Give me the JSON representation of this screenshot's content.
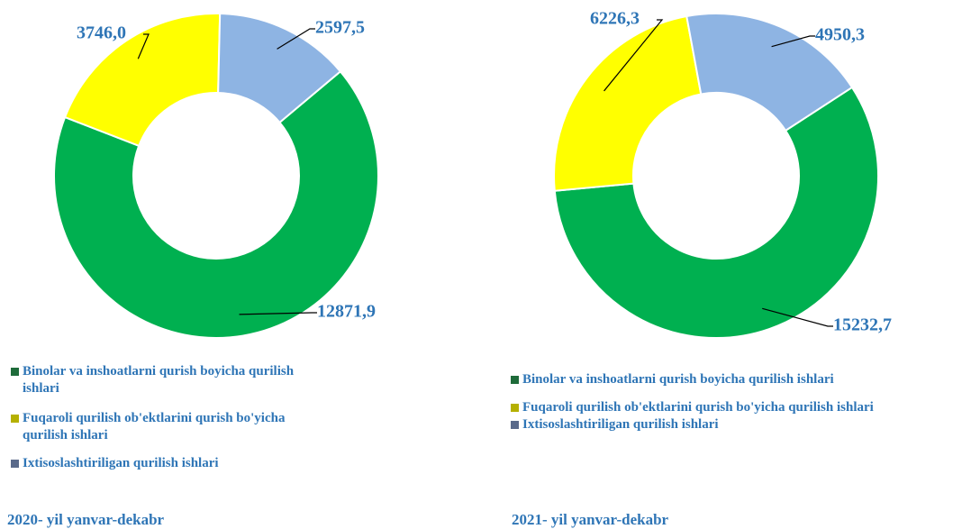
{
  "chart_data": [
    {
      "type": "donut",
      "title": "2020- yil yanvar-dekabr",
      "categories": [
        "Binolar va inshoatlarni qurish boyicha qurilish ishlari",
        "Fuqaroli qurilish ob'ektlarini qurish bo'yicha qurilish ishlari",
        "Ixtisoslashtiriligan qurilish ishlari"
      ],
      "values": [
        12871.9,
        3746.0,
        2597.5
      ],
      "value_labels": [
        "12871,9",
        "3746,0",
        "2597,5"
      ],
      "colors": [
        "#00b050",
        "#ffff00",
        "#8eb4e3"
      ],
      "legend_colors": [
        "#1e6b3a",
        "#b5b000",
        "#5a6a8a"
      ]
    },
    {
      "type": "donut",
      "title": "2021- yil yanvar-dekabr",
      "categories": [
        "Binolar va inshoatlarni qurish boyicha qurilish ishlari",
        "Fuqaroli qurilish ob'ektlarini qurish bo'yicha qurilish ishlari",
        "Ixtisoslashtiriligan qurilish ishlari"
      ],
      "values": [
        15232.7,
        6226.3,
        4950.3
      ],
      "value_labels": [
        "15232,7",
        "6226,3",
        "4950,3"
      ],
      "colors": [
        "#00b050",
        "#ffff00",
        "#8eb4e3"
      ],
      "legend_colors": [
        "#1e6b3a",
        "#b5b000",
        "#5a6a8a"
      ]
    }
  ]
}
